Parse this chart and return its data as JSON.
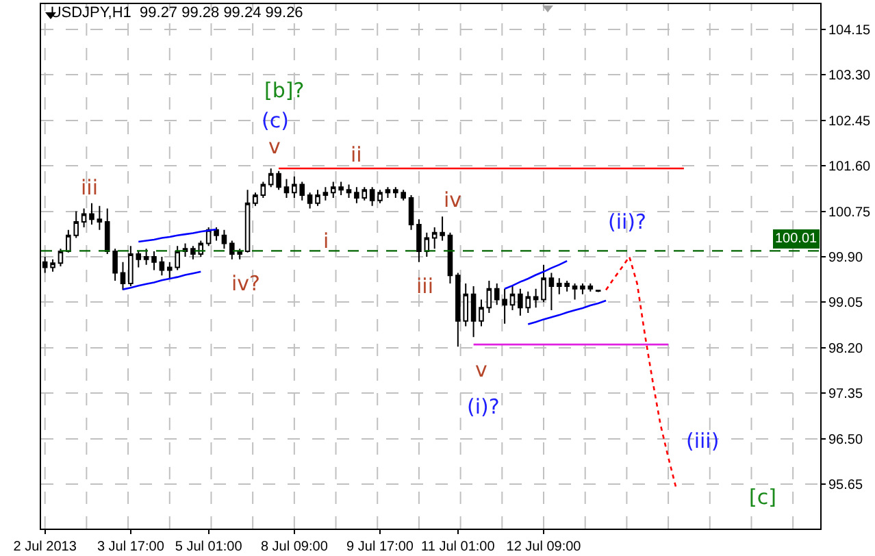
{
  "chart_data": {
    "type": "candlestick",
    "title": "USDJPY,H1  99.27 99.28 99.24 99.26",
    "color": "#000000",
    "categories": [
      "2 Jul 2013",
      null,
      null,
      null,
      null,
      null,
      null,
      null,
      null,
      null,
      null,
      "3 Jul 17:00",
      null,
      null,
      null,
      null,
      null,
      null,
      null,
      null,
      null,
      "5 Jul 01:00",
      null,
      null,
      null,
      null,
      null,
      null,
      null,
      null,
      null,
      null,
      "8 Jul 09:00",
      null,
      null,
      null,
      null,
      null,
      null,
      null,
      null,
      null,
      null,
      "9 Jul 17:00",
      null,
      null,
      null,
      null,
      null,
      null,
      null,
      null,
      null,
      "11 Jul 01:00",
      null,
      null,
      null,
      null,
      null,
      null,
      null,
      null,
      null,
      null,
      "12 Jul 09:00",
      null,
      null,
      null,
      null,
      null,
      null,
      null,
      null,
      null,
      null,
      null,
      null,
      null,
      null,
      null,
      null,
      null,
      null,
      null,
      null,
      null,
      null,
      null,
      null,
      null,
      null,
      null,
      null,
      null,
      null,
      null,
      null,
      null,
      null,
      null
    ],
    "ohlc": [
      [
        99.8,
        99.9,
        99.6,
        99.7
      ],
      [
        99.7,
        99.85,
        99.62,
        99.78
      ],
      [
        99.78,
        100.05,
        99.72,
        100.0
      ],
      [
        100.0,
        100.4,
        99.98,
        100.3
      ],
      [
        100.3,
        100.75,
        100.25,
        100.55
      ],
      [
        100.55,
        100.8,
        100.45,
        100.7
      ],
      [
        100.7,
        100.9,
        100.5,
        100.6
      ],
      [
        100.6,
        100.85,
        100.4,
        100.55
      ],
      [
        100.55,
        100.8,
        99.95,
        100.0
      ],
      [
        100.0,
        100.05,
        99.45,
        99.6
      ],
      [
        99.6,
        99.8,
        99.28,
        99.4
      ],
      [
        99.4,
        100.1,
        99.35,
        99.95
      ],
      [
        99.95,
        100.0,
        99.7,
        99.85
      ],
      [
        99.85,
        100.05,
        99.75,
        99.9
      ],
      [
        99.9,
        100.0,
        99.65,
        99.8
      ],
      [
        99.8,
        99.9,
        99.55,
        99.65
      ],
      [
        99.65,
        99.8,
        99.5,
        99.7
      ],
      [
        99.7,
        100.1,
        99.65,
        100.0
      ],
      [
        100.0,
        100.15,
        99.9,
        100.05
      ],
      [
        100.05,
        100.1,
        99.85,
        99.95
      ],
      [
        99.95,
        100.2,
        99.9,
        100.15
      ],
      [
        100.15,
        100.45,
        100.1,
        100.4
      ],
      [
        100.4,
        100.45,
        100.2,
        100.3
      ],
      [
        100.3,
        100.4,
        100.05,
        100.15
      ],
      [
        100.15,
        100.2,
        99.85,
        99.95
      ],
      [
        99.95,
        100.05,
        99.85,
        100.0
      ],
      [
        100.0,
        101.15,
        99.98,
        100.9
      ],
      [
        100.9,
        101.1,
        100.85,
        101.05
      ],
      [
        101.05,
        101.3,
        101.0,
        101.25
      ],
      [
        101.25,
        101.55,
        101.2,
        101.45
      ],
      [
        101.45,
        101.5,
        101.15,
        101.2
      ],
      [
        101.2,
        101.35,
        101.0,
        101.1
      ],
      [
        101.1,
        101.4,
        101.0,
        101.25
      ],
      [
        101.25,
        101.3,
        100.95,
        101.05
      ],
      [
        101.05,
        101.1,
        100.8,
        100.9
      ],
      [
        100.9,
        101.15,
        100.85,
        101.05
      ],
      [
        101.05,
        101.2,
        100.95,
        101.1
      ],
      [
        101.1,
        101.3,
        101.0,
        101.2
      ],
      [
        101.2,
        101.3,
        101.05,
        101.15
      ],
      [
        101.15,
        101.25,
        101.0,
        101.1
      ],
      [
        101.1,
        101.2,
        100.9,
        101.0
      ],
      [
        101.0,
        101.2,
        100.95,
        101.15
      ],
      [
        101.15,
        101.2,
        100.85,
        100.95
      ],
      [
        100.95,
        101.15,
        100.9,
        101.1
      ],
      [
        101.1,
        101.2,
        101.0,
        101.15
      ],
      [
        101.15,
        101.2,
        101.0,
        101.1
      ],
      [
        101.1,
        101.15,
        100.95,
        101.0
      ],
      [
        101.0,
        101.05,
        100.4,
        100.5
      ],
      [
        100.5,
        100.6,
        99.8,
        100.0
      ],
      [
        100.0,
        100.35,
        99.9,
        100.25
      ],
      [
        100.25,
        100.45,
        100.05,
        100.35
      ],
      [
        100.35,
        100.65,
        100.2,
        100.3
      ],
      [
        100.3,
        100.35,
        99.4,
        99.55
      ],
      [
        99.55,
        99.6,
        98.22,
        98.7
      ],
      [
        98.7,
        99.4,
        98.6,
        99.2
      ],
      [
        99.2,
        99.35,
        98.4,
        98.7
      ],
      [
        98.7,
        99.1,
        98.6,
        98.95
      ],
      [
        98.95,
        99.45,
        98.85,
        99.3
      ],
      [
        99.3,
        99.4,
        99.0,
        99.1
      ],
      [
        99.1,
        99.3,
        98.65,
        99.0
      ],
      [
        99.0,
        99.35,
        98.9,
        99.2
      ],
      [
        99.2,
        99.3,
        98.8,
        98.95
      ],
      [
        98.95,
        99.25,
        98.85,
        99.15
      ],
      [
        99.15,
        99.3,
        98.95,
        99.1
      ],
      [
        99.1,
        99.75,
        99.05,
        99.5
      ],
      [
        99.5,
        99.6,
        98.9,
        99.35
      ],
      [
        99.35,
        99.5,
        99.2,
        99.4
      ],
      [
        99.4,
        99.45,
        99.25,
        99.35
      ],
      [
        99.35,
        99.4,
        99.1,
        99.3
      ],
      [
        99.3,
        99.4,
        99.2,
        99.35
      ],
      [
        99.35,
        99.4,
        99.25,
        99.3
      ],
      [
        99.27,
        99.28,
        99.24,
        99.26
      ],
      null,
      null,
      null,
      null,
      null,
      null,
      null,
      null,
      null,
      null,
      null,
      null,
      null,
      null,
      null,
      null,
      null,
      null,
      null,
      null,
      null,
      null,
      null,
      null,
      null,
      null,
      null,
      null
    ],
    "series": [
      {
        "type": "line",
        "color": "#0000ff",
        "line_style": "solid",
        "values": [
          null,
          null,
          null,
          null,
          null,
          null,
          null,
          null,
          null,
          null,
          99.29,
          99.32,
          99.36,
          99.39,
          99.42,
          99.46,
          99.49,
          99.52,
          99.56,
          99.59,
          99.62,
          null,
          null,
          null,
          null,
          null,
          null,
          null,
          null,
          null,
          null,
          null,
          null,
          null,
          null,
          null,
          null,
          null,
          null,
          null,
          null,
          null,
          null,
          null,
          null,
          null,
          null,
          null,
          null,
          null,
          null,
          null,
          null,
          null,
          null,
          null,
          null,
          null,
          null,
          null,
          null,
          null,
          null,
          null,
          null,
          null,
          null,
          null,
          null,
          null,
          null,
          null,
          null,
          null,
          null,
          null,
          null,
          null,
          null,
          null,
          null,
          null,
          null,
          null,
          null,
          null,
          null,
          null,
          null,
          null,
          null,
          null,
          null,
          null,
          null,
          null,
          null,
          null,
          null,
          null
        ]
      },
      {
        "type": "line",
        "color": "#0000ff",
        "line_style": "solid",
        "values": [
          null,
          null,
          null,
          null,
          null,
          null,
          null,
          null,
          null,
          null,
          null,
          null,
          100.18,
          100.2,
          100.22,
          100.25,
          100.27,
          100.3,
          100.32,
          100.34,
          100.37,
          100.39,
          100.41,
          null,
          null,
          null,
          null,
          null,
          null,
          null,
          null,
          null,
          null,
          null,
          null,
          null,
          null,
          null,
          null,
          null,
          null,
          null,
          null,
          null,
          null,
          null,
          null,
          null,
          null,
          null,
          null,
          null,
          null,
          null,
          null,
          null,
          null,
          null,
          null,
          null,
          null,
          null,
          null,
          null,
          null,
          null,
          null,
          null,
          null,
          null,
          null,
          null,
          null,
          null,
          null,
          null,
          null,
          null,
          null,
          null,
          null,
          null,
          null,
          null,
          null,
          null,
          null,
          null,
          null,
          null,
          null,
          null,
          null,
          null,
          null,
          null,
          null,
          null,
          null,
          null
        ]
      },
      {
        "type": "line",
        "color": "#0000ff",
        "line_style": "solid",
        "values": [
          null,
          null,
          null,
          null,
          null,
          null,
          null,
          null,
          null,
          null,
          null,
          null,
          null,
          null,
          null,
          null,
          null,
          null,
          null,
          null,
          null,
          null,
          null,
          null,
          null,
          null,
          null,
          null,
          null,
          null,
          null,
          null,
          null,
          null,
          null,
          null,
          null,
          null,
          null,
          null,
          null,
          null,
          null,
          null,
          null,
          null,
          null,
          null,
          null,
          null,
          null,
          null,
          null,
          null,
          null,
          null,
          null,
          null,
          null,
          99.3,
          99.36,
          99.43,
          99.49,
          99.56,
          99.62,
          99.69,
          99.75,
          99.82,
          null,
          null,
          null,
          null,
          null,
          null,
          null,
          null,
          null,
          null,
          null,
          null,
          null,
          null,
          null,
          null,
          null,
          null,
          null,
          null,
          null,
          null,
          null,
          null,
          null,
          null,
          null,
          null,
          null,
          null,
          null,
          null
        ]
      },
      {
        "type": "line",
        "color": "#0000ff",
        "line_style": "solid",
        "values": [
          null,
          null,
          null,
          null,
          null,
          null,
          null,
          null,
          null,
          null,
          null,
          null,
          null,
          null,
          null,
          null,
          null,
          null,
          null,
          null,
          null,
          null,
          null,
          null,
          null,
          null,
          null,
          null,
          null,
          null,
          null,
          null,
          null,
          null,
          null,
          null,
          null,
          null,
          null,
          null,
          null,
          null,
          null,
          null,
          null,
          null,
          null,
          null,
          null,
          null,
          null,
          null,
          null,
          null,
          null,
          null,
          null,
          null,
          null,
          null,
          null,
          null,
          98.64,
          98.68,
          98.73,
          98.77,
          98.81,
          98.86,
          98.9,
          98.94,
          98.99,
          99.03,
          99.08,
          null,
          null,
          null,
          null,
          null,
          null,
          null,
          null,
          null,
          null,
          null,
          null,
          null,
          null,
          null,
          null,
          null,
          null,
          null,
          null,
          null,
          null,
          null,
          null,
          null,
          null,
          null
        ]
      },
      {
        "type": "line",
        "color": "#ff0000",
        "line_style": "solid",
        "values": [
          null,
          null,
          null,
          null,
          null,
          null,
          null,
          null,
          null,
          null,
          null,
          null,
          null,
          null,
          null,
          null,
          null,
          null,
          null,
          null,
          null,
          null,
          null,
          null,
          null,
          null,
          null,
          null,
          null,
          null,
          101.55,
          101.55,
          101.55,
          101.55,
          101.55,
          101.55,
          101.55,
          101.55,
          101.55,
          101.55,
          101.55,
          101.55,
          101.55,
          101.55,
          101.55,
          101.55,
          101.55,
          101.55,
          101.55,
          101.55,
          101.55,
          101.55,
          101.55,
          101.55,
          101.55,
          101.55,
          101.55,
          101.55,
          101.55,
          101.55,
          101.55,
          101.55,
          101.55,
          101.55,
          101.55,
          101.55,
          101.55,
          101.55,
          101.55,
          101.55,
          101.55,
          101.55,
          101.55,
          101.55,
          101.55,
          101.55,
          101.55,
          101.55,
          101.55,
          101.55,
          101.55,
          101.55,
          101.55,
          null,
          null,
          null,
          null,
          null,
          null,
          null,
          null,
          null,
          null,
          null,
          null,
          null,
          null,
          null,
          null,
          null
        ]
      },
      {
        "type": "line",
        "color": "#e020e0",
        "line_style": "solid",
        "values": [
          null,
          null,
          null,
          null,
          null,
          null,
          null,
          null,
          null,
          null,
          null,
          null,
          null,
          null,
          null,
          null,
          null,
          null,
          null,
          null,
          null,
          null,
          null,
          null,
          null,
          null,
          null,
          null,
          null,
          null,
          null,
          null,
          null,
          null,
          null,
          null,
          null,
          null,
          null,
          null,
          null,
          null,
          null,
          null,
          null,
          null,
          null,
          null,
          null,
          null,
          null,
          null,
          null,
          null,
          null,
          98.26,
          98.26,
          98.26,
          98.26,
          98.26,
          98.26,
          98.26,
          98.26,
          98.26,
          98.26,
          98.26,
          98.26,
          98.26,
          98.26,
          98.26,
          98.26,
          98.26,
          98.26,
          98.26,
          98.26,
          98.26,
          98.26,
          98.26,
          98.26,
          98.26,
          98.26,
          null,
          null,
          null,
          null,
          null,
          null,
          null,
          null,
          null,
          null,
          null,
          null,
          null,
          null,
          null,
          null,
          null,
          null,
          null
        ]
      },
      {
        "type": "line",
        "color": "#ff0000",
        "line_style": "dotted",
        "values": [
          null,
          null,
          null,
          null,
          null,
          null,
          null,
          null,
          null,
          null,
          null,
          null,
          null,
          null,
          null,
          null,
          null,
          null,
          null,
          null,
          null,
          null,
          null,
          null,
          null,
          null,
          null,
          null,
          null,
          null,
          null,
          null,
          null,
          null,
          null,
          null,
          null,
          null,
          null,
          null,
          null,
          null,
          null,
          null,
          null,
          null,
          null,
          null,
          null,
          null,
          null,
          null,
          null,
          null,
          null,
          null,
          null,
          null,
          null,
          null,
          null,
          null,
          null,
          null,
          null,
          null,
          null,
          null,
          null,
          null,
          null,
          null,
          99.28,
          99.49,
          99.69,
          99.9,
          99.4,
          98.44,
          97.57,
          96.76,
          96.15,
          95.58,
          null,
          null,
          null,
          null,
          null,
          null,
          null,
          null,
          null,
          null,
          null,
          null,
          null,
          null,
          null,
          null,
          null,
          null
        ]
      }
    ],
    "ref_lines": [
      {
        "axis": "y",
        "value": 100.01,
        "label": "100.01",
        "color": "#006400",
        "line_style": "dashed"
      }
    ],
    "annotations": [
      "iii",
      "iv?",
      "[b]?",
      "(c)",
      "v",
      "ii",
      "i",
      "iv",
      "iii",
      "v",
      "(i)?",
      "(ii)?",
      "(iii)",
      "[c]"
    ],
    "ylim": [
      94.82,
      104.62
    ],
    "yticks": [
      104.15,
      {
        "value": 103.3,
        "label": "103.30"
      },
      102.45,
      {
        "value": 101.6,
        "label": "101.60"
      },
      100.75,
      {
        "value": 99.9,
        "label": "99.90"
      },
      99.05,
      {
        "value": 98.2,
        "label": "98.20"
      },
      97.35,
      {
        "value": 96.5,
        "label": "96.50"
      },
      95.65
    ],
    "grid": true,
    "marker": "none"
  }
}
